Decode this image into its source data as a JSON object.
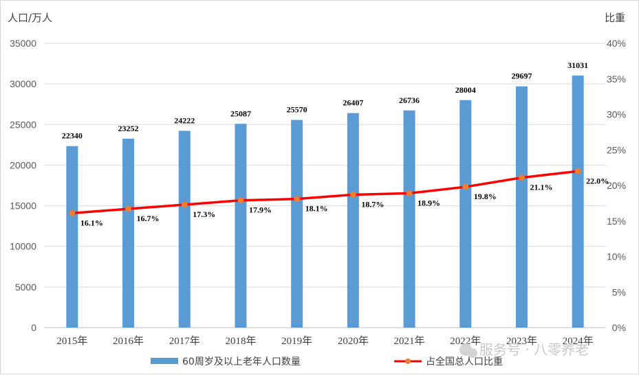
{
  "chart_data": {
    "type": "bar+line",
    "left_axis_title": "人口/万人",
    "right_axis_title": "比重",
    "categories": [
      "2015年",
      "2016年",
      "2017年",
      "2018年",
      "2019年",
      "2020年",
      "2021年",
      "2022年",
      "2023年",
      "2024年"
    ],
    "left_ylim": [
      0,
      35000
    ],
    "left_ticks": [
      "0",
      "5000",
      "10000",
      "15000",
      "20000",
      "25000",
      "30000",
      "35000"
    ],
    "right_ylim": [
      0,
      40
    ],
    "right_ticks": [
      "0%",
      "5%",
      "10%",
      "15%",
      "20%",
      "25%",
      "30%",
      "35%",
      "40%"
    ],
    "series": [
      {
        "name": "60周岁及以上老年人口数量",
        "type": "bar",
        "axis": "left",
        "color": "#5b9bd5",
        "values": [
          22340,
          23252,
          24222,
          25087,
          25570,
          26407,
          26736,
          28004,
          29697,
          31031
        ],
        "labels": [
          "22340",
          "23252",
          "24222",
          "25087",
          "25570",
          "26407",
          "26736",
          "28004",
          "29697",
          "31031"
        ]
      },
      {
        "name": "占全国总人口比重",
        "type": "line",
        "axis": "right",
        "color": "#ff0000",
        "marker_color": "#ed7d31",
        "values": [
          16.1,
          16.7,
          17.3,
          17.9,
          18.1,
          18.7,
          18.9,
          19.8,
          21.1,
          22.0
        ],
        "labels": [
          "16.1%",
          "16.7%",
          "17.3%",
          "17.9%",
          "18.1%",
          "18.7%",
          "18.9%",
          "19.8%",
          "21.1%",
          "22.0%"
        ]
      }
    ],
    "grid": true,
    "legend_position": "bottom"
  },
  "watermark": "服务号 · 八零养老"
}
